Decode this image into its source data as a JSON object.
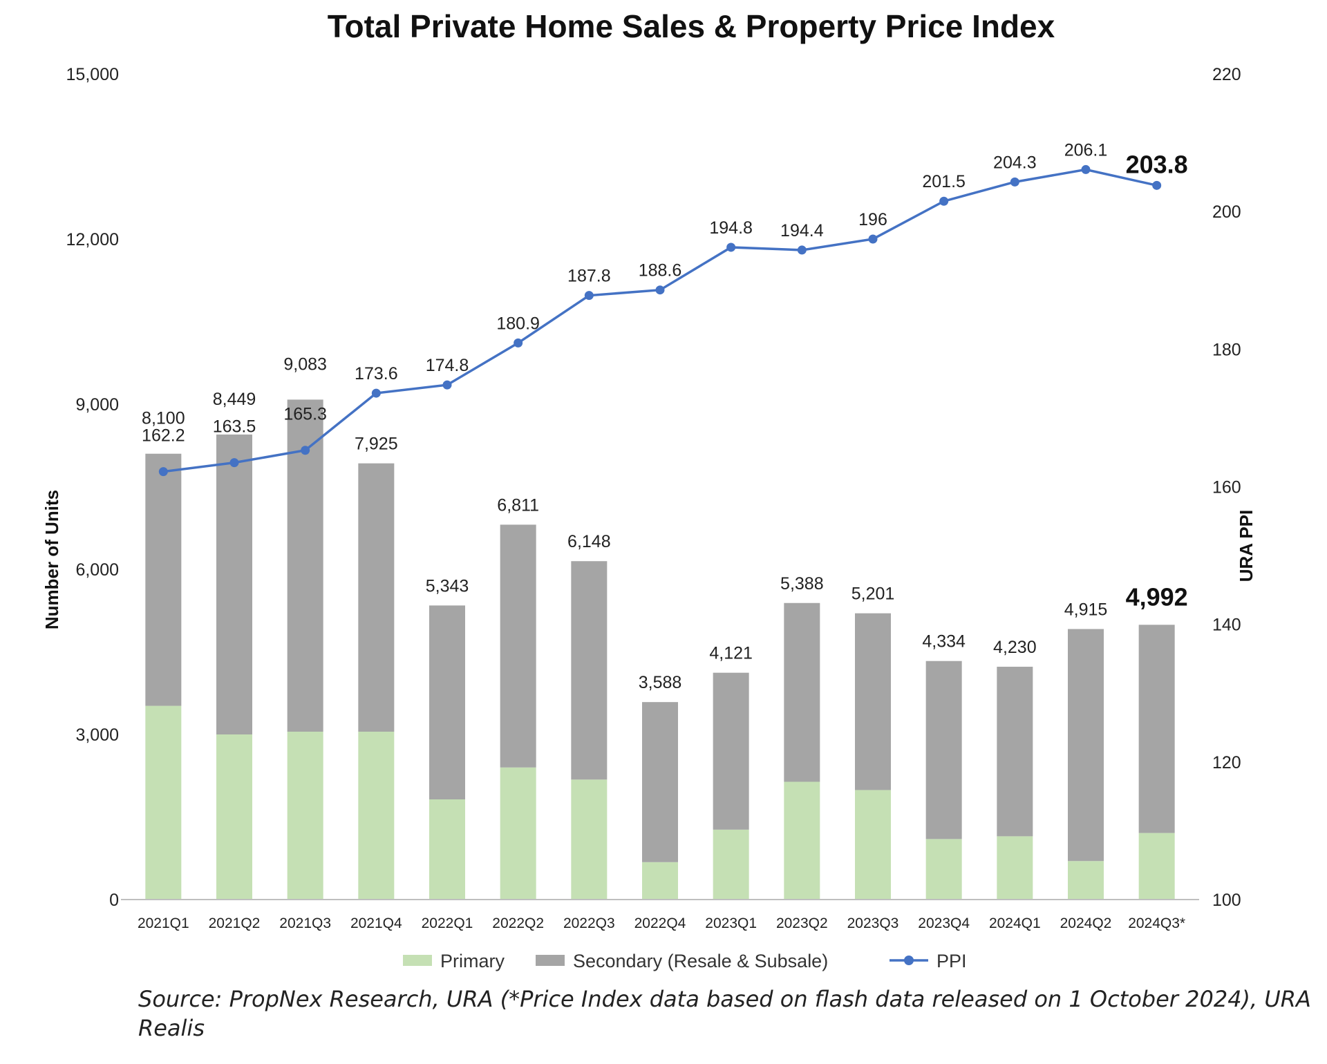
{
  "chart_data": {
    "type": "bar",
    "title": "Total Private Home Sales & Property Price Index",
    "ylabel": "Number of Units",
    "y2label": "URA PPI",
    "ylim": [
      0,
      15000
    ],
    "y2lim": [
      100,
      220
    ],
    "yticks": [
      "0",
      "3,000",
      "6,000",
      "9,000",
      "12,000",
      "15,000"
    ],
    "y2ticks": [
      "100",
      "120",
      "140",
      "160",
      "180",
      "200",
      "220"
    ],
    "categories": [
      "2021Q1",
      "2021Q2",
      "2021Q3",
      "2021Q4",
      "2022Q1",
      "2022Q2",
      "2022Q3",
      "2022Q4",
      "2023Q1",
      "2023Q2",
      "2023Q3",
      "2023Q4",
      "2024Q1",
      "2024Q2",
      "2024Q3*"
    ],
    "series": [
      {
        "name": "Primary",
        "type": "bar",
        "stack": "units",
        "color": "#c5e0b4",
        "values": [
          3520,
          3000,
          3050,
          3050,
          1820,
          2400,
          2180,
          680,
          1270,
          2140,
          1990,
          1100,
          1150,
          700,
          1210
        ]
      },
      {
        "name": "Secondary (Resale & Subsale)",
        "type": "bar",
        "stack": "units",
        "color": "#a5a5a5",
        "values": [
          4580,
          5449,
          6033,
          4875,
          3523,
          4411,
          3968,
          2908,
          2851,
          3248,
          3211,
          3234,
          3080,
          4215,
          3782
        ]
      },
      {
        "name": "PPI",
        "type": "line",
        "axis": "right",
        "color": "#4472c4",
        "values": [
          162.2,
          163.5,
          165.3,
          173.6,
          174.8,
          180.9,
          187.8,
          188.6,
          194.8,
          194.4,
          196,
          201.5,
          204.3,
          206.1,
          203.8
        ]
      }
    ],
    "total_labels": [
      "8,100",
      "8,449",
      "9,083",
      "7,925",
      "5,343",
      "6,811",
      "6,148",
      "3,588",
      "4,121",
      "5,388",
      "5,201",
      "4,334",
      "4,230",
      "4,915",
      "4,992"
    ],
    "ppi_labels": [
      "162.2",
      "163.5",
      "165.3",
      "173.6",
      "174.8",
      "180.9",
      "187.8",
      "188.6",
      "194.8",
      "194.4",
      "196",
      "201.5",
      "204.3",
      "206.1",
      "203.8"
    ],
    "legend": {
      "position": "bottom",
      "items": [
        {
          "label": "Primary",
          "color": "#c5e0b4",
          "kind": "bar"
        },
        {
          "label": "Secondary (Resale & Subsale)",
          "color": "#a5a5a5",
          "kind": "bar"
        },
        {
          "label": "PPI",
          "color": "#4472c4",
          "kind": "line"
        }
      ]
    }
  },
  "source_note": "Source: PropNex Research, URA (*Price Index data based on flash data released on 1 October 2024), URA Realis"
}
